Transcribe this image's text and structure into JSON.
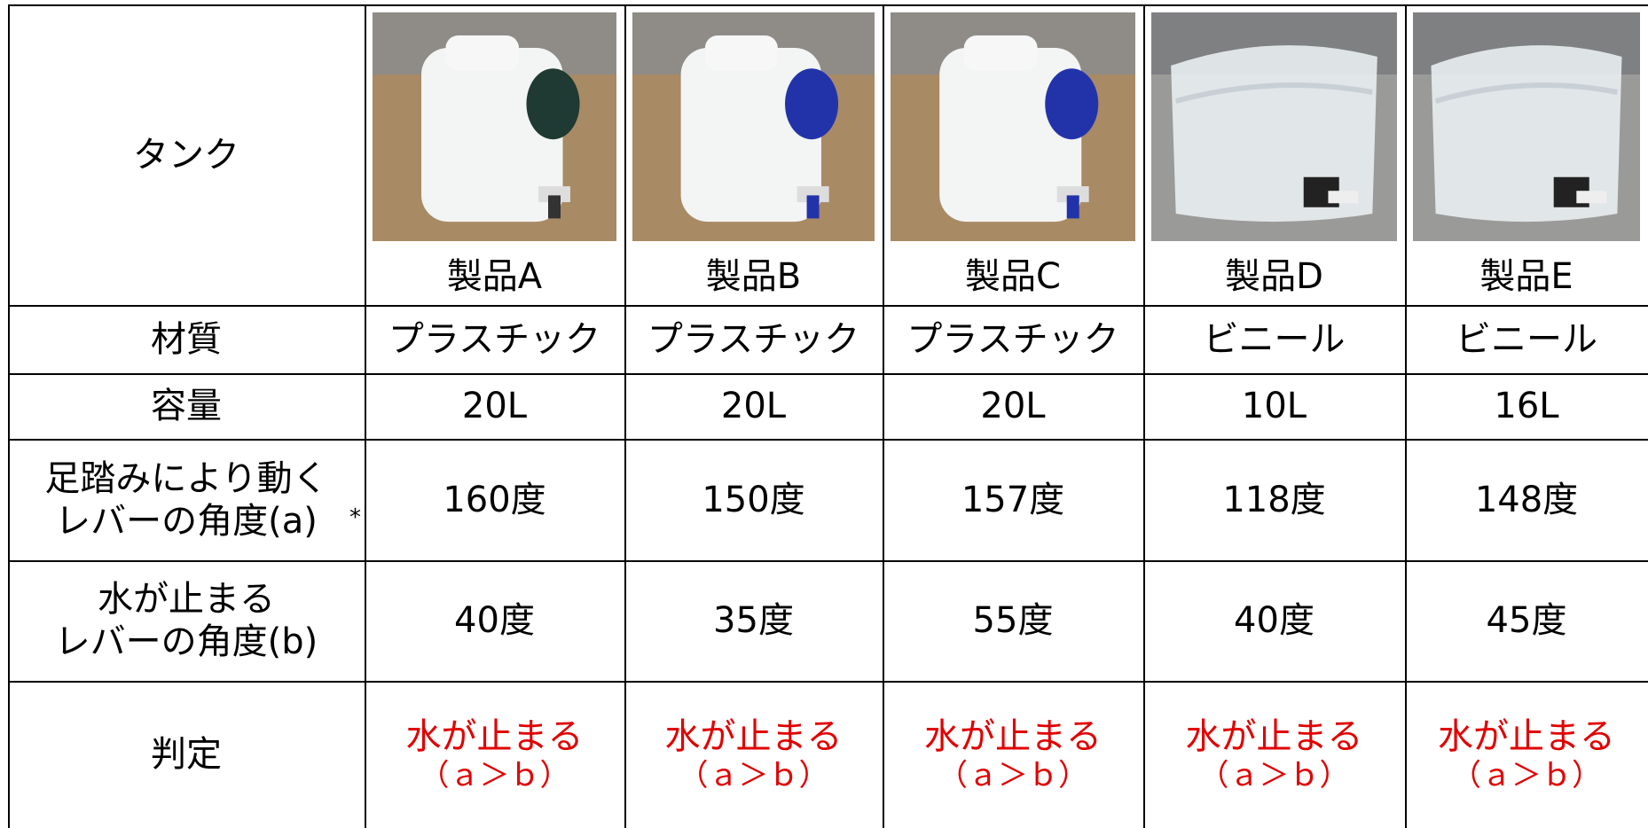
{
  "table": {
    "header": {
      "label": "タンク",
      "products": [
        "製品A",
        "製品B",
        "製品C",
        "製品D",
        "製品E"
      ]
    },
    "rows": [
      {
        "label": [
          "材質"
        ],
        "cells": [
          "プラスチック",
          "プラスチック",
          "プラスチック",
          "ビニール",
          "ビニール"
        ]
      },
      {
        "label": [
          "容量"
        ],
        "cells": [
          "20L",
          "20L",
          "20L",
          "10L",
          "16L"
        ]
      },
      {
        "label": [
          "足踏みにより動く",
          "レバーの角度(a)"
        ],
        "note_mark": "*",
        "cells": [
          "160度",
          "150度",
          "157度",
          "118度",
          "148度"
        ]
      },
      {
        "label": [
          "水が止まる",
          "レバーの角度(b)"
        ],
        "cells": [
          "40度",
          "35度",
          "55度",
          "40度",
          "45度"
        ]
      }
    ],
    "judgement": {
      "label": "判定",
      "cells": [
        {
          "result": "水が止まる",
          "condition": "（ａ＞ｂ）"
        },
        {
          "result": "水が止まる",
          "condition": "（ａ＞ｂ）"
        },
        {
          "result": "水が止まる",
          "condition": "（ａ＞ｂ）"
        },
        {
          "result": "水が止まる",
          "condition": "（ａ＞ｂ）"
        },
        {
          "result": "水が止まる",
          "condition": "（ａ＞ｂ）"
        }
      ]
    }
  }
}
